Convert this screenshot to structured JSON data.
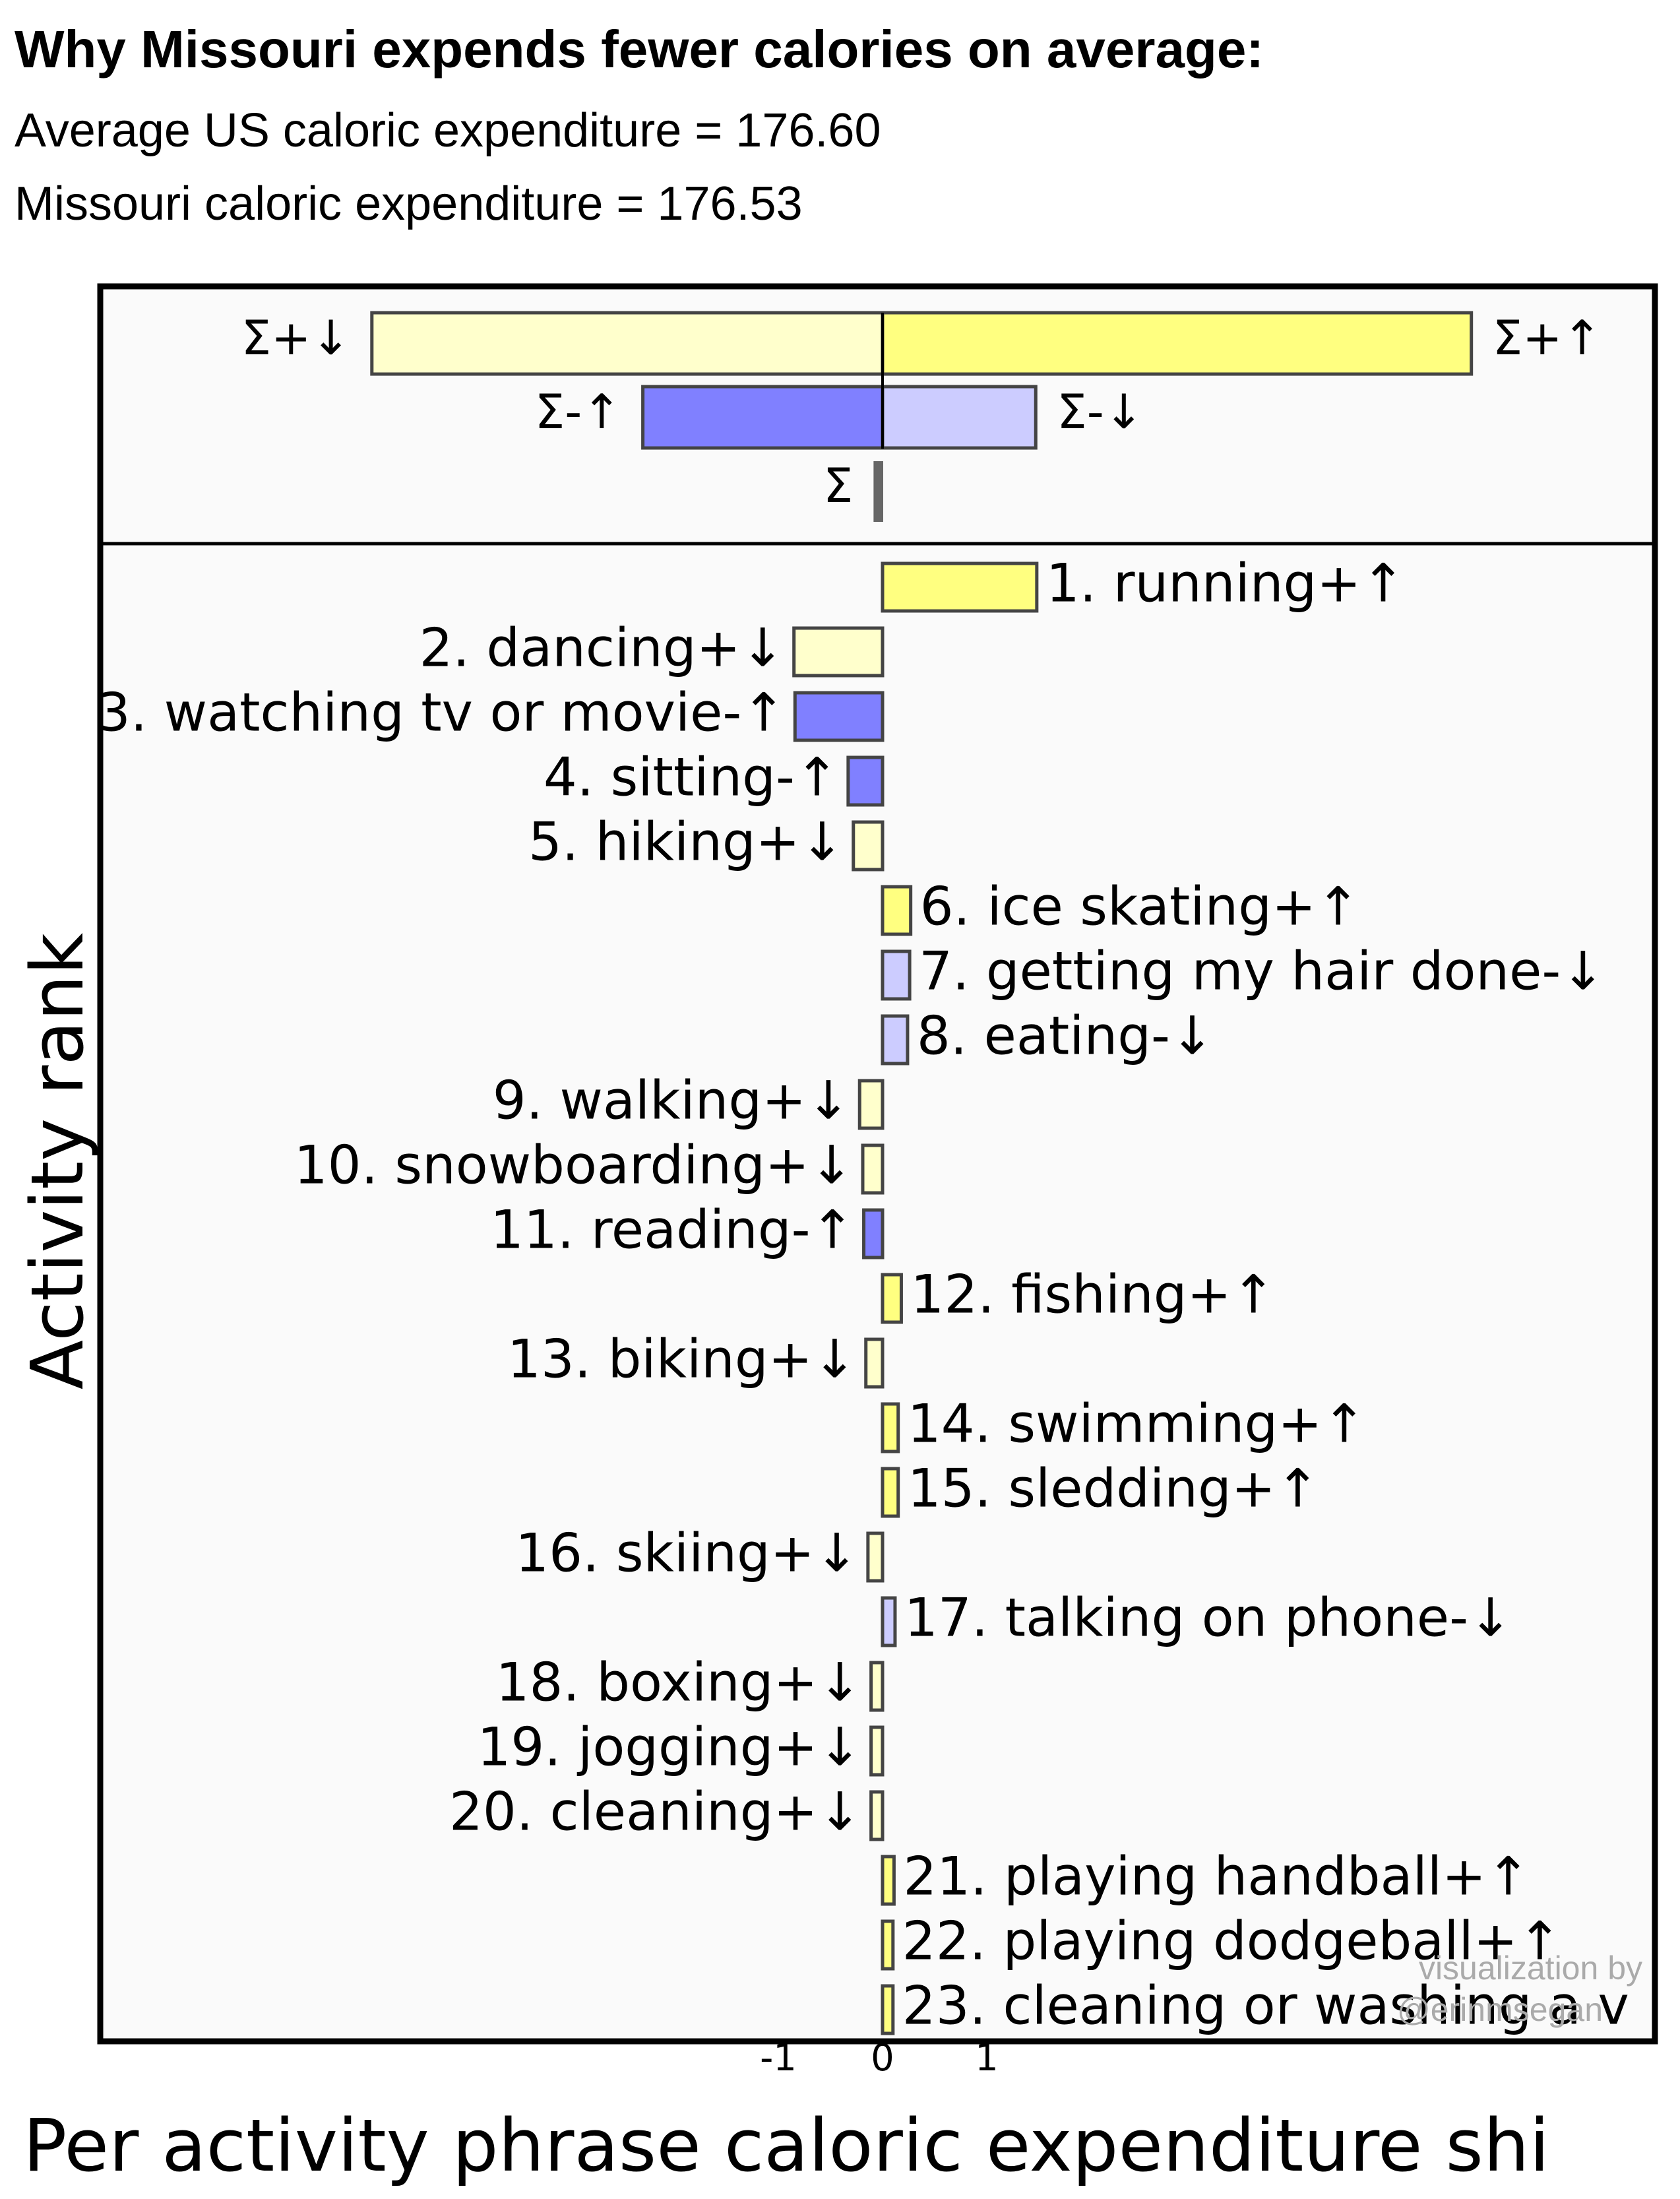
{
  "header": {
    "title": "Why Missouri expends fewer calories on average:",
    "line1": "Average US caloric expenditure = 176.60",
    "line2": "Missouri caloric expenditure = 176.53"
  },
  "credit": {
    "line1": "visualization by",
    "line2": "@erinmsegan"
  },
  "colors": {
    "plus_up": "#ffff80",
    "plus_down": "#ffffcc",
    "minus_up": "#8080ff",
    "minus_down": "#ccccff",
    "sum": "#666666",
    "outline": "#444444",
    "panel_bg": "#fafafa"
  },
  "chart_data": {
    "type": "bar",
    "title": "Why Missouri expends fewer calories on average:",
    "xlabel": "Per activity phrase caloric expenditure shi",
    "ylabel": "Activity rank",
    "xlim": [
      -7.5,
      7.5
    ],
    "x_ticks": [
      "-1",
      "0",
      "1"
    ],
    "x_tick_values": [
      -1,
      0,
      1
    ],
    "summary": [
      {
        "label": "Σ+↓",
        "value": -4.9,
        "kind": "plus_down"
      },
      {
        "label": "Σ+↑",
        "value": 5.65,
        "kind": "plus_up"
      },
      {
        "label": "Σ-↑",
        "value": -2.3,
        "kind": "minus_up"
      },
      {
        "label": "Σ-↓",
        "value": 1.47,
        "kind": "minus_down"
      },
      {
        "label": "Σ",
        "value": -0.08,
        "kind": "sum"
      }
    ],
    "activities": [
      {
        "label": "1. running+↑",
        "value": 1.48,
        "kind": "plus_up"
      },
      {
        "label": "2. dancing+↓",
        "value": -0.85,
        "kind": "plus_down"
      },
      {
        "label": "3. watching tv or movie-↑",
        "value": -0.84,
        "kind": "minus_up"
      },
      {
        "label": "4. sitting-↑",
        "value": -0.33,
        "kind": "minus_up"
      },
      {
        "label": "5. hiking+↓",
        "value": -0.28,
        "kind": "plus_down"
      },
      {
        "label": "6. ice skating+↑",
        "value": 0.27,
        "kind": "plus_up"
      },
      {
        "label": "7. getting my hair done-↓",
        "value": 0.26,
        "kind": "minus_down"
      },
      {
        "label": "8. eating-↓",
        "value": 0.24,
        "kind": "minus_down"
      },
      {
        "label": "9. walking+↓",
        "value": -0.22,
        "kind": "plus_down"
      },
      {
        "label": "10. snowboarding+↓",
        "value": -0.19,
        "kind": "plus_down"
      },
      {
        "label": "11. reading-↑",
        "value": -0.18,
        "kind": "minus_up"
      },
      {
        "label": "12. fishing+↑",
        "value": 0.18,
        "kind": "plus_up"
      },
      {
        "label": "13. biking+↓",
        "value": -0.16,
        "kind": "plus_down"
      },
      {
        "label": "14. swimming+↑",
        "value": 0.15,
        "kind": "plus_up"
      },
      {
        "label": "15. sledding+↑",
        "value": 0.15,
        "kind": "plus_up"
      },
      {
        "label": "16. skiing+↓",
        "value": -0.14,
        "kind": "plus_down"
      },
      {
        "label": "17. talking on phone-↓",
        "value": 0.12,
        "kind": "minus_down"
      },
      {
        "label": "18. boxing+↓",
        "value": -0.11,
        "kind": "plus_down"
      },
      {
        "label": "19. jogging+↓",
        "value": -0.11,
        "kind": "plus_down"
      },
      {
        "label": "20. cleaning+↓",
        "value": -0.11,
        "kind": "plus_down"
      },
      {
        "label": "21. playing handball+↑",
        "value": 0.11,
        "kind": "plus_up"
      },
      {
        "label": "22. playing dodgeball+↑",
        "value": 0.1,
        "kind": "plus_up"
      },
      {
        "label": "23. cleaning or washing a v",
        "value": 0.1,
        "kind": "plus_up"
      }
    ]
  }
}
